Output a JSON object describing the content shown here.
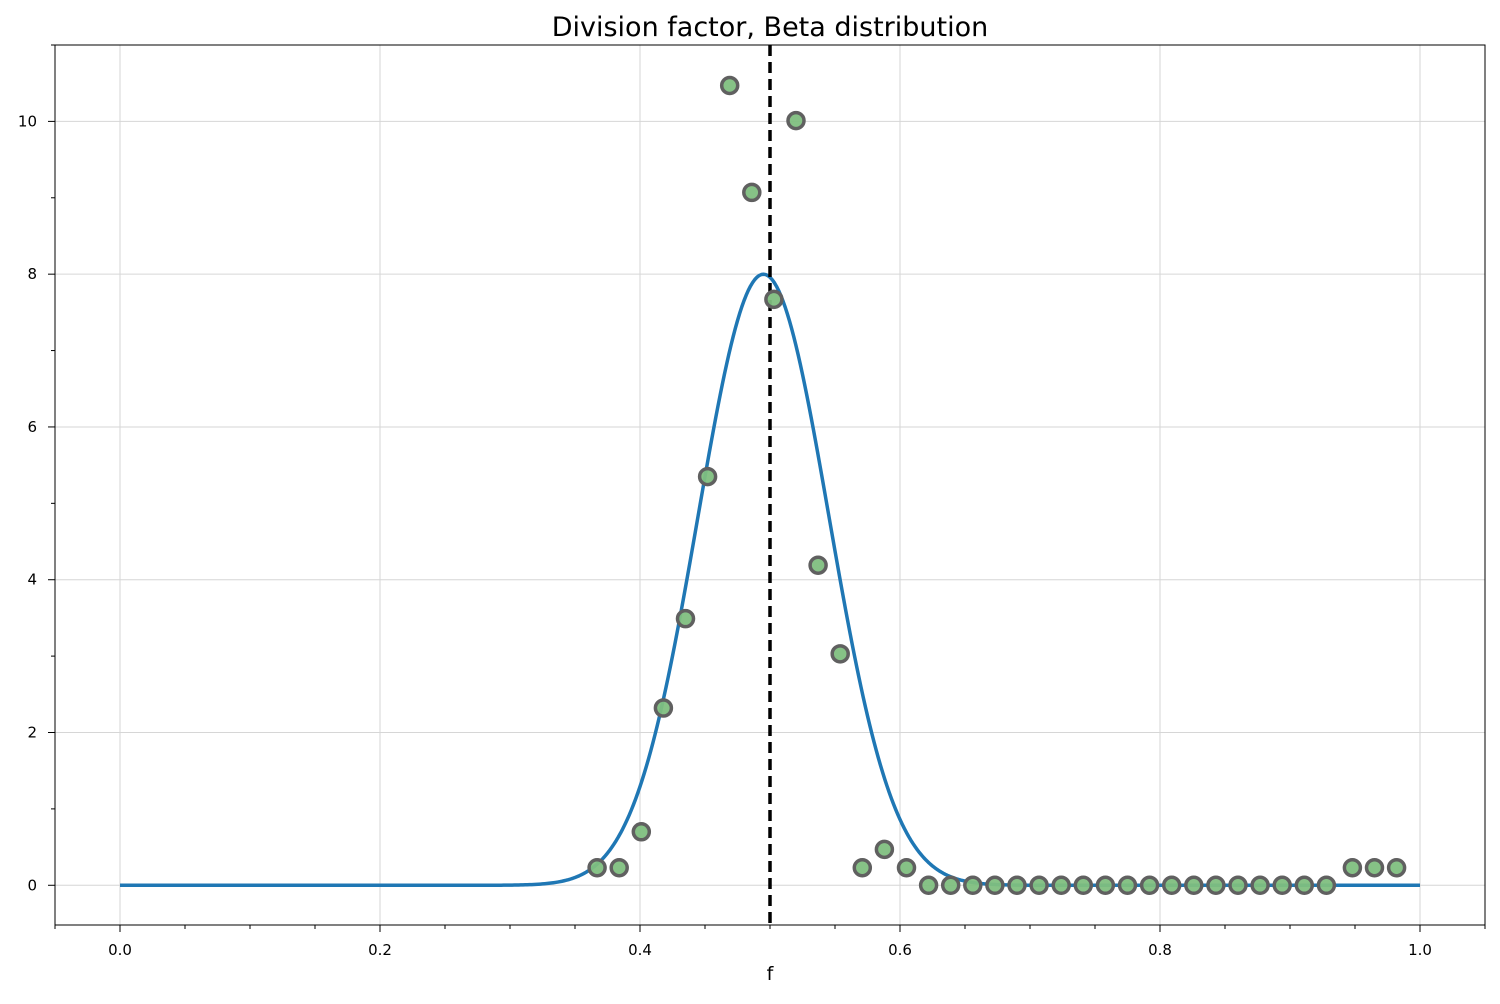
{
  "chart_data": {
    "type": "line",
    "title": "Division factor, Beta distribution",
    "xlabel": "f",
    "ylabel": "",
    "xlim": [
      -0.05,
      1.05
    ],
    "ylim": [
      -0.52,
      11.0
    ],
    "x_ticks": [
      0.0,
      0.2,
      0.4,
      0.6,
      0.8,
      1.0
    ],
    "x_tick_labels": [
      "0.0",
      "0.2",
      "0.4",
      "0.6",
      "0.8",
      "1.0"
    ],
    "y_ticks": [
      0,
      2,
      4,
      6,
      8,
      10
    ],
    "y_tick_labels": [
      "0",
      "2",
      "4",
      "6",
      "8",
      "10"
    ],
    "x_minor_step": 0.05,
    "y_minor_step": 1,
    "grid": true,
    "vline": {
      "x": 0.5,
      "style": "dashed",
      "color": "#000000"
    },
    "series": [
      {
        "kind": "line",
        "color": "#1f77b4",
        "curve": {
          "distribution": "beta",
          "alpha": 50,
          "beta": 51,
          "x_min": 0.0,
          "x_max": 1.0
        }
      },
      {
        "kind": "scatter",
        "color": "#7fbf7f",
        "edge_color": "#606060",
        "x": [
          0.367,
          0.384,
          0.401,
          0.418,
          0.435,
          0.452,
          0.469,
          0.486,
          0.503,
          0.52,
          0.537,
          0.554,
          0.571,
          0.588,
          0.605,
          0.622,
          0.639,
          0.656,
          0.673,
          0.69,
          0.707,
          0.724,
          0.741,
          0.758,
          0.775,
          0.792,
          0.809,
          0.826,
          0.843,
          0.86,
          0.877,
          0.894,
          0.911,
          0.928,
          0.948,
          0.965,
          0.982
        ],
        "y": [
          0.23,
          0.23,
          0.7,
          2.32,
          3.49,
          5.35,
          10.47,
          9.07,
          7.67,
          10.01,
          4.19,
          3.03,
          0.23,
          0.47,
          0.23,
          0.0,
          0.0,
          0.0,
          0.0,
          0.0,
          0.0,
          0.0,
          0.0,
          0.0,
          0.0,
          0.0,
          0.0,
          0.0,
          0.0,
          0.0,
          0.0,
          0.0,
          0.0,
          0.0,
          0.23,
          0.23,
          0.23
        ]
      }
    ]
  }
}
